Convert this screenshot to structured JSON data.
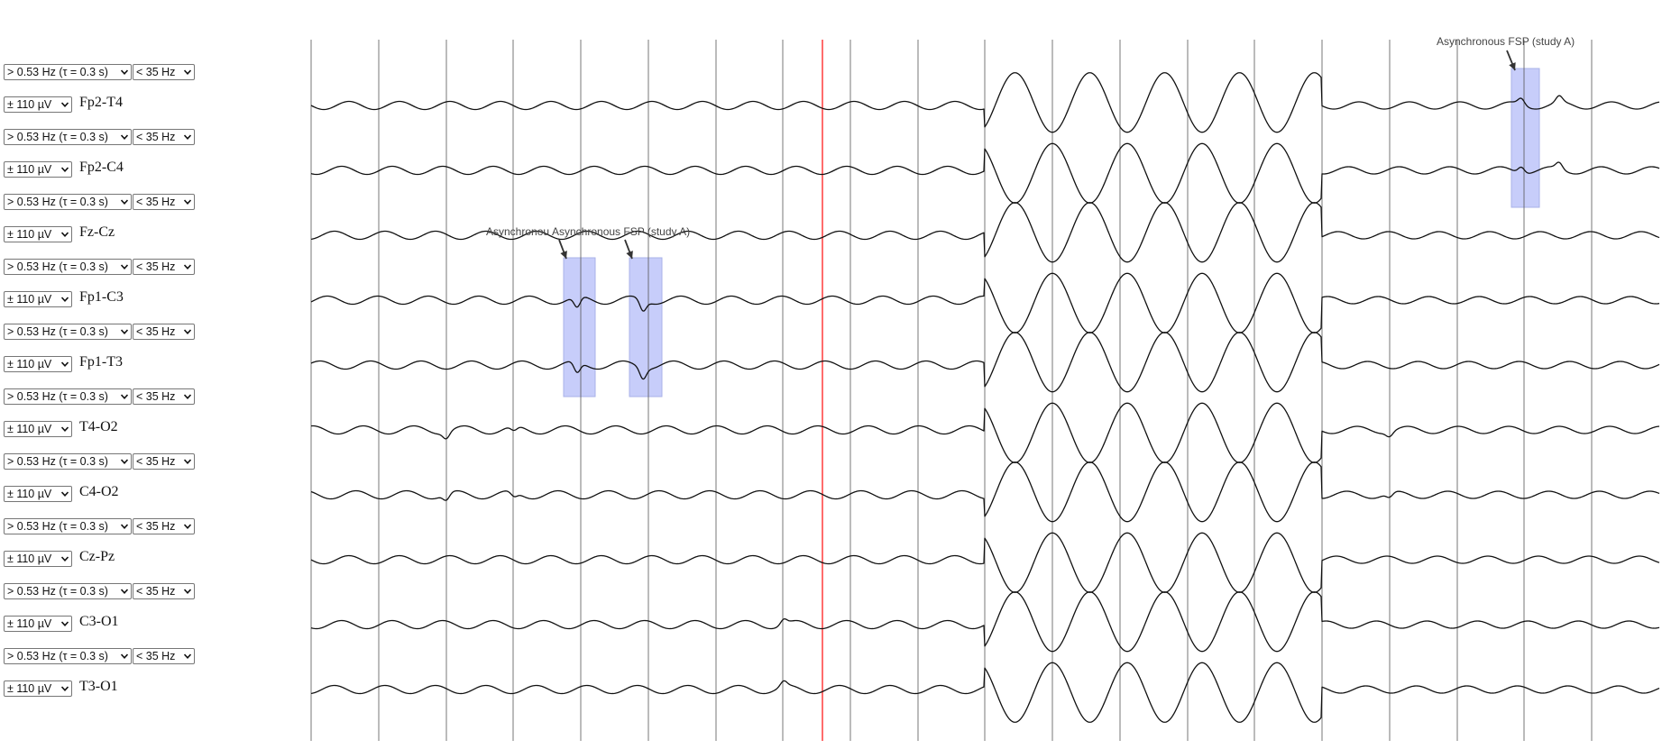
{
  "channels": [
    {
      "label": "Fp2-T4",
      "highpass": "> 0.53 Hz (τ = 0.3 s)",
      "lowpass": "< 35 Hz",
      "gain": "± 110 µV"
    },
    {
      "label": "Fp2-C4",
      "highpass": "> 0.53 Hz (τ = 0.3 s)",
      "lowpass": "< 35 Hz",
      "gain": "± 110 µV"
    },
    {
      "label": "Fz-Cz",
      "highpass": "> 0.53 Hz (τ = 0.3 s)",
      "lowpass": "< 35 Hz",
      "gain": "± 110 µV"
    },
    {
      "label": "Fp1-C3",
      "highpass": "> 0.53 Hz (τ = 0.3 s)",
      "lowpass": "< 35 Hz",
      "gain": "± 110 µV"
    },
    {
      "label": "Fp1-T3",
      "highpass": "> 0.53 Hz (τ = 0.3 s)",
      "lowpass": "< 35 Hz",
      "gain": "± 110 µV"
    },
    {
      "label": "T4-O2",
      "highpass": "> 0.53 Hz (τ = 0.3 s)",
      "lowpass": "< 35 Hz",
      "gain": "± 110 µV"
    },
    {
      "label": "C4-O2",
      "highpass": "> 0.53 Hz (τ = 0.3 s)",
      "lowpass": "< 35 Hz",
      "gain": "± 110 µV"
    },
    {
      "label": "Cz-Pz",
      "highpass": "> 0.53 Hz (τ = 0.3 s)",
      "lowpass": "< 35 Hz",
      "gain": "± 110 µV"
    },
    {
      "label": "C3-O1",
      "highpass": "> 0.53 Hz (τ = 0.3 s)",
      "lowpass": "< 35 Hz",
      "gain": "± 110 µV"
    },
    {
      "label": "T3-O1",
      "highpass": "> 0.53 Hz (τ = 0.3 s)",
      "lowpass": "< 35 Hz",
      "gain": "± 110 µV"
    }
  ],
  "annotations": [
    {
      "text": "Asynchronous FSP (study A)",
      "channels": [
        "Fp2-T4",
        "Fp2-C4"
      ]
    },
    {
      "text": "Asynchronou",
      "channels": [
        "Fp1-C3",
        "Fp1-T3"
      ]
    },
    {
      "text": "Asynchronous FSP (study A)",
      "channels": [
        "Fp1-C3",
        "Fp1-T3"
      ]
    }
  ],
  "colors": {
    "trace": "#111111",
    "grid": "#555555",
    "cursor": "#ff3b3b",
    "annotation_fill": "#c7cdfa",
    "annotation_border": "#aab2e8"
  },
  "icons": {
    "dropdown": "chevron-down-icon",
    "annotation_pointer": "arrow-down-icon"
  }
}
